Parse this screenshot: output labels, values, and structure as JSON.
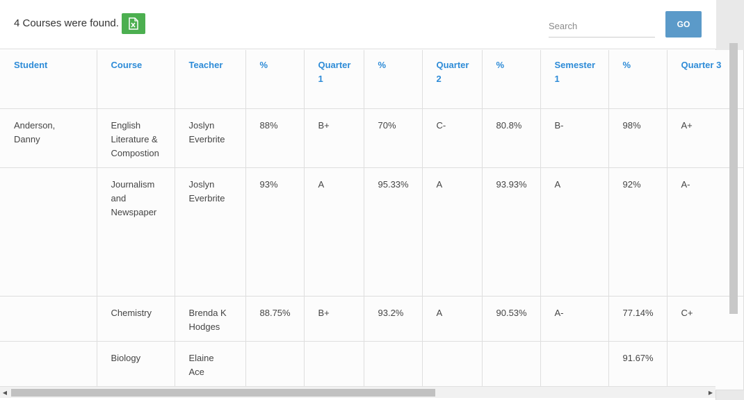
{
  "header": {
    "found_text": "4 Courses were found.",
    "excel_icon": "excel-file-icon",
    "search_placeholder": "Search",
    "go_label": "GO"
  },
  "table": {
    "columns": [
      "Student",
      "Course",
      "Teacher",
      "%",
      "Quarter 1",
      "%",
      "Quarter 2",
      "%",
      "Semester 1",
      "%",
      "Quarter 3"
    ],
    "rows": [
      [
        "Anderson, Danny",
        "English Literature & Compostion",
        "Joslyn Everbrite",
        "88%",
        "B+",
        "70%",
        "C-",
        "80.8%",
        "B-",
        "98%",
        "A+"
      ],
      [
        "",
        "Journalism and Newspaper",
        "Joslyn Everbrite",
        "93%",
        "A",
        "95.33%",
        "A",
        "93.93%",
        "A",
        "92%",
        "A-"
      ],
      [
        "",
        "Chemistry",
        "Brenda K Hodges",
        "88.75%",
        "B+",
        "93.2%",
        "A",
        "90.53%",
        "A-",
        "77.14%",
        "C+"
      ],
      [
        "",
        "Biology",
        "Elaine Ace",
        "",
        "",
        "",
        "",
        "",
        "",
        "91.67%",
        ""
      ]
    ]
  },
  "scrollbar": {
    "left_arrow": "◀",
    "right_arrow": "▶"
  }
}
